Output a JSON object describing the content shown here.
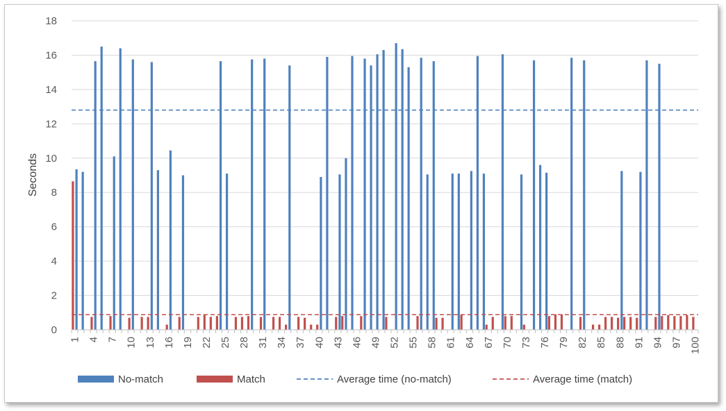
{
  "chart_data": {
    "type": "bar",
    "ylabel": "Seconds",
    "xlabel": "",
    "ylim": [
      0,
      18
    ],
    "yticks": [
      0,
      2,
      4,
      6,
      8,
      10,
      12,
      14,
      16,
      18
    ],
    "x_tick_labels": [
      1,
      4,
      7,
      10,
      13,
      16,
      19,
      22,
      25,
      28,
      31,
      34,
      37,
      40,
      43,
      46,
      49,
      52,
      55,
      58,
      61,
      64,
      67,
      70,
      73,
      76,
      79,
      82,
      85,
      88,
      91,
      94,
      97,
      100
    ],
    "grid": true,
    "legend_position": "bottom",
    "colors": {
      "no_match": "#4f81bd",
      "match": "#c0504d"
    },
    "series": [
      {
        "name": "No-match",
        "kind": "bar",
        "color": "#4f81bd",
        "points": [
          [
            1,
            9.35
          ],
          [
            2,
            9.2
          ],
          [
            4,
            15.65
          ],
          [
            5,
            16.5
          ],
          [
            7,
            10.1
          ],
          [
            8,
            16.4
          ],
          [
            10,
            15.75
          ],
          [
            13,
            15.6
          ],
          [
            14,
            9.3
          ],
          [
            16,
            10.45
          ],
          [
            18,
            9.0
          ],
          [
            24,
            15.65
          ],
          [
            25,
            9.1
          ],
          [
            29,
            15.75
          ],
          [
            31,
            15.8
          ],
          [
            35,
            15.4
          ],
          [
            40,
            8.9
          ],
          [
            41,
            15.9
          ],
          [
            43,
            9.05
          ],
          [
            44,
            10.0
          ],
          [
            45,
            15.95
          ],
          [
            47,
            15.8
          ],
          [
            48,
            15.4
          ],
          [
            49,
            16.05
          ],
          [
            50,
            16.3
          ],
          [
            52,
            16.7
          ],
          [
            53,
            16.35
          ],
          [
            54,
            15.3
          ],
          [
            56,
            15.85
          ],
          [
            57,
            9.05
          ],
          [
            58,
            15.65
          ],
          [
            61,
            9.1
          ],
          [
            62,
            9.1
          ],
          [
            64,
            9.25
          ],
          [
            65,
            15.95
          ],
          [
            66,
            9.1
          ],
          [
            69,
            16.05
          ],
          [
            72,
            9.05
          ],
          [
            74,
            15.7
          ],
          [
            75,
            9.6
          ],
          [
            76,
            9.15
          ],
          [
            80,
            15.85
          ],
          [
            82,
            15.7
          ],
          [
            88,
            9.25
          ],
          [
            91,
            9.2
          ],
          [
            92,
            15.7
          ],
          [
            94,
            15.5
          ]
        ]
      },
      {
        "name": "Match",
        "kind": "bar",
        "color": "#c0504d",
        "points": [
          [
            1,
            8.65
          ],
          [
            4,
            0.75
          ],
          [
            7,
            0.8
          ],
          [
            10,
            0.7
          ],
          [
            12,
            0.75
          ],
          [
            13,
            0.75
          ],
          [
            16,
            0.3
          ],
          [
            18,
            0.75
          ],
          [
            21,
            0.75
          ],
          [
            22,
            0.9
          ],
          [
            23,
            0.75
          ],
          [
            24,
            0.8
          ],
          [
            27,
            0.75
          ],
          [
            28,
            0.75
          ],
          [
            29,
            0.8
          ],
          [
            31,
            0.75
          ],
          [
            33,
            0.75
          ],
          [
            34,
            0.75
          ],
          [
            35,
            0.3
          ],
          [
            37,
            0.75
          ],
          [
            38,
            0.7
          ],
          [
            39,
            0.3
          ],
          [
            40,
            0.3
          ],
          [
            43,
            0.75
          ],
          [
            44,
            0.8
          ],
          [
            47,
            0.8
          ],
          [
            51,
            0.75
          ],
          [
            56,
            0.8
          ],
          [
            59,
            0.7
          ],
          [
            60,
            0.7
          ],
          [
            63,
            0.85
          ],
          [
            67,
            0.3
          ],
          [
            68,
            0.75
          ],
          [
            70,
            0.8
          ],
          [
            71,
            0.8
          ],
          [
            73,
            0.3
          ],
          [
            77,
            0.8
          ],
          [
            78,
            0.9
          ],
          [
            79,
            0.9
          ],
          [
            82,
            0.75
          ],
          [
            84,
            0.3
          ],
          [
            85,
            0.3
          ],
          [
            86,
            0.75
          ],
          [
            87,
            0.75
          ],
          [
            88,
            0.7
          ],
          [
            89,
            0.75
          ],
          [
            90,
            0.75
          ],
          [
            91,
            0.7
          ],
          [
            94,
            0.75
          ],
          [
            95,
            0.8
          ],
          [
            96,
            0.85
          ],
          [
            97,
            0.8
          ],
          [
            98,
            0.8
          ],
          [
            99,
            0.85
          ],
          [
            100,
            0.75
          ]
        ]
      },
      {
        "name": "Average time (no-match)",
        "kind": "hline",
        "color": "#4f81bd",
        "value": 12.8
      },
      {
        "name": "Average time (match)",
        "kind": "hline",
        "color": "#c0504d",
        "value": 0.88
      }
    ]
  }
}
